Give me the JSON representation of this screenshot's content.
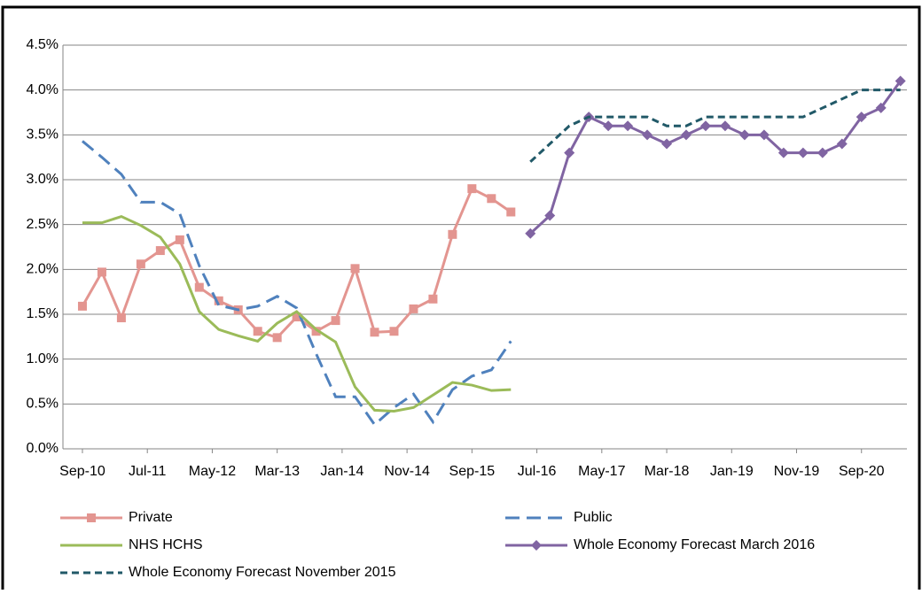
{
  "chart_data": {
    "type": "line",
    "xlim": [
      "Jun-10",
      "Apr-21"
    ],
    "xticks": [
      "Sep-10",
      "Jul-11",
      "May-12",
      "Mar-13",
      "Jan-14",
      "Nov-14",
      "Sep-15",
      "Jul-16",
      "May-17",
      "Mar-18",
      "Jan-19",
      "Nov-19",
      "Sep-20"
    ],
    "ylim": [
      0,
      4.5
    ],
    "yticks": [
      {
        "value": 0,
        "label": "0.0%"
      },
      {
        "value": 0.5,
        "label": "0.5%"
      },
      {
        "value": 1,
        "label": "1.0%"
      },
      {
        "value": 1.5,
        "label": "1.5%"
      },
      {
        "value": 2,
        "label": "2.0%"
      },
      {
        "value": 2.5,
        "label": "2.5%"
      },
      {
        "value": 3,
        "label": "3.0%"
      },
      {
        "value": 3.5,
        "label": "3.5%"
      },
      {
        "value": 4,
        "label": "4.0%"
      },
      {
        "value": 4.5,
        "label": "4.5%"
      }
    ],
    "grid": true,
    "legend": "bottom",
    "series": [
      {
        "name": "Private",
        "color": "#e39590",
        "dashed": false,
        "marker": "square",
        "x": [
          "Sep-10",
          "Dec-10",
          "Mar-11",
          "Jun-11",
          "Sep-11",
          "Dec-11",
          "Mar-12",
          "Jun-12",
          "Sep-12",
          "Dec-12",
          "Mar-13",
          "Jun-13",
          "Sep-13",
          "Dec-13",
          "Mar-14",
          "Jun-14",
          "Sep-14",
          "Dec-14",
          "Mar-15",
          "Jun-15",
          "Sep-15",
          "Dec-15",
          "Mar-16"
        ],
        "values": [
          1.59,
          1.97,
          1.46,
          2.06,
          2.21,
          2.33,
          1.8,
          1.65,
          1.55,
          1.31,
          1.24,
          1.47,
          1.31,
          1.43,
          2.01,
          1.3,
          1.31,
          1.56,
          1.67,
          2.39,
          2.9,
          2.79,
          2.64
        ]
      },
      {
        "name": "Public",
        "color": "#4f81bd",
        "dashed": true,
        "marker": "none",
        "x": [
          "Sep-10",
          "Dec-10",
          "Mar-11",
          "Jun-11",
          "Sep-11",
          "Dec-11",
          "Mar-12",
          "Jun-12",
          "Sep-12",
          "Dec-12",
          "Mar-13",
          "Jun-13",
          "Sep-13",
          "Dec-13",
          "Mar-14",
          "Jun-14",
          "Sep-14",
          "Dec-14",
          "Mar-15",
          "Jun-15",
          "Sep-15",
          "Dec-15",
          "Mar-16"
        ],
        "values": [
          3.43,
          3.25,
          3.06,
          2.75,
          2.75,
          2.62,
          2.04,
          1.6,
          1.55,
          1.59,
          1.7,
          1.57,
          1.06,
          0.58,
          0.58,
          0.27,
          0.46,
          0.61,
          0.3,
          0.66,
          0.81,
          0.88,
          1.2
        ]
      },
      {
        "name": "NHS HCHS",
        "color": "#9bbb59",
        "dashed": false,
        "marker": "none",
        "x": [
          "Sep-10",
          "Dec-10",
          "Mar-11",
          "Jun-11",
          "Sep-11",
          "Dec-11",
          "Mar-12",
          "Jun-12",
          "Sep-12",
          "Dec-12",
          "Mar-13",
          "Jun-13",
          "Sep-13",
          "Dec-13",
          "Mar-14",
          "Jun-14",
          "Sep-14",
          "Dec-14",
          "Mar-15",
          "Jun-15",
          "Sep-15",
          "Dec-15",
          "Mar-16"
        ],
        "values": [
          2.52,
          2.52,
          2.59,
          2.49,
          2.36,
          2.06,
          1.53,
          1.33,
          1.26,
          1.2,
          1.4,
          1.53,
          1.33,
          1.19,
          0.69,
          0.43,
          0.42,
          0.46,
          0.6,
          0.74,
          0.71,
          0.65,
          0.66
        ]
      },
      {
        "name": "Whole Economy Forecast March 2016",
        "color": "#8064a2",
        "dashed": false,
        "marker": "diamond",
        "x": [
          "Jun-16",
          "Sep-16",
          "Dec-16",
          "Mar-17",
          "Jun-17",
          "Sep-17",
          "Dec-17",
          "Mar-18",
          "Jun-18",
          "Sep-18",
          "Dec-18",
          "Mar-19",
          "Jun-19",
          "Sep-19",
          "Dec-19",
          "Mar-20",
          "Jun-20",
          "Sep-20",
          "Dec-20",
          "Mar-21"
        ],
        "values": [
          2.4,
          2.6,
          3.3,
          3.7,
          3.6,
          3.6,
          3.5,
          3.4,
          3.5,
          3.6,
          3.6,
          3.5,
          3.5,
          3.3,
          3.3,
          3.3,
          3.4,
          3.7,
          3.8,
          4.1
        ]
      },
      {
        "name": "Whole Economy Forecast November 2015",
        "color": "#215968",
        "dashed": true,
        "marker": "none",
        "x": [
          "Jun-16",
          "Sep-16",
          "Dec-16",
          "Mar-17",
          "Jun-17",
          "Sep-17",
          "Dec-17",
          "Mar-18",
          "Jun-18",
          "Sep-18",
          "Dec-18",
          "Mar-19",
          "Jun-19",
          "Sep-19",
          "Dec-19",
          "Mar-20",
          "Jun-20",
          "Sep-20",
          "Dec-20",
          "Mar-21"
        ],
        "values": [
          3.2,
          3.4,
          3.6,
          3.7,
          3.7,
          3.7,
          3.7,
          3.6,
          3.6,
          3.7,
          3.7,
          3.7,
          3.7,
          3.7,
          3.7,
          3.8,
          3.9,
          4.0,
          4.0,
          4.0
        ]
      }
    ]
  }
}
